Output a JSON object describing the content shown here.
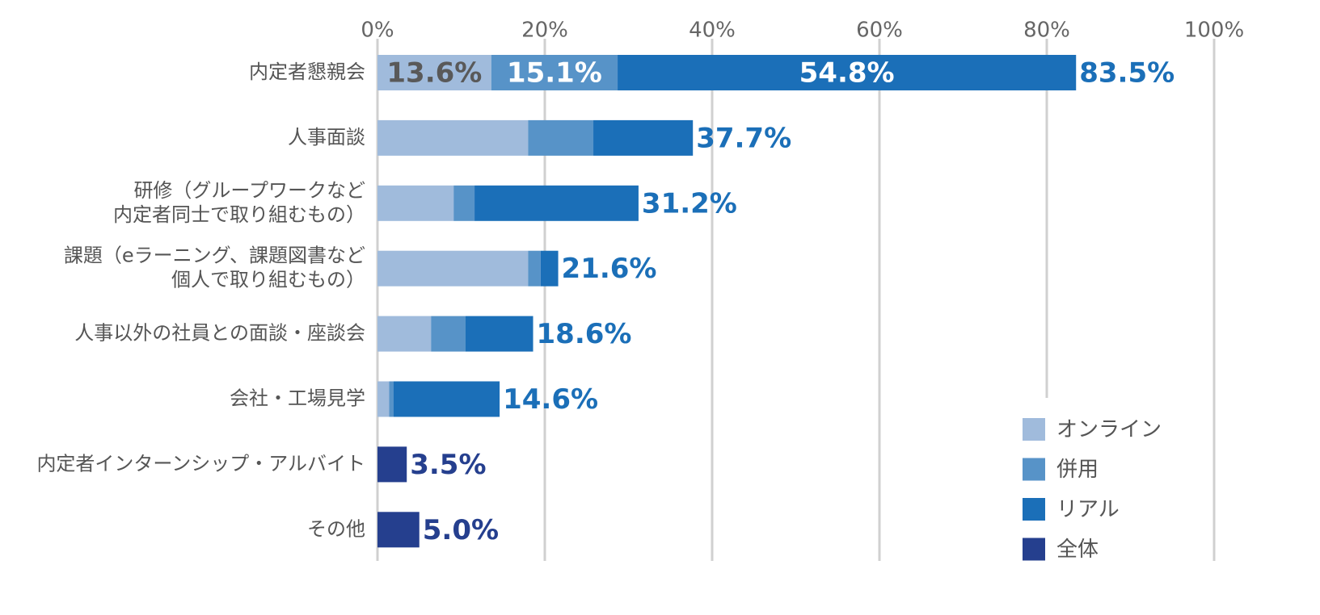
{
  "chart_data": {
    "type": "stacked-bar-horizontal",
    "categories": [
      "内定者懇親会",
      "人事面談",
      "研修（グループワークなど\n内定者同士で取り組むもの）",
      "課題（eラーニング、課題図書など\n個人で取り組むもの）",
      "人事以外の社員との面談・座談会",
      "会社・工場見学",
      "内定者インターンシップ・アルバイト",
      "その他"
    ],
    "series": [
      {
        "name": "オンライン",
        "color": "#a0bbdc",
        "label_color": "#595959",
        "values": [
          13.6,
          18.0,
          9.1,
          18.0,
          6.4,
          1.4,
          null,
          null
        ],
        "value_labels": [
          "13.6%",
          null,
          null,
          null,
          null,
          null,
          null,
          null
        ]
      },
      {
        "name": "併用",
        "color": "#5793c8",
        "label_color": "#ffffff",
        "values": [
          15.1,
          7.8,
          2.5,
          1.5,
          4.1,
          0.5,
          null,
          null
        ],
        "value_labels": [
          "15.1%",
          null,
          null,
          null,
          null,
          null,
          null,
          null
        ]
      },
      {
        "name": "リアル",
        "color": "#1b6fb8",
        "label_color": "#ffffff",
        "values": [
          54.8,
          11.9,
          19.6,
          2.1,
          8.1,
          12.7,
          null,
          null
        ],
        "value_labels": [
          "54.8%",
          null,
          null,
          null,
          null,
          null,
          null,
          null
        ]
      },
      {
        "name": "全体",
        "color": "#253f8e",
        "values": [
          null,
          null,
          null,
          null,
          null,
          null,
          3.5,
          5.0
        ]
      }
    ],
    "totals": {
      "values": [
        83.5,
        37.7,
        31.2,
        21.6,
        18.6,
        14.6,
        3.5,
        5.0
      ],
      "value_labels": [
        "83.5%",
        "37.7%",
        "31.2%",
        "21.6%",
        "18.6%",
        "14.6%",
        "3.5%",
        "5.0%"
      ],
      "colors": [
        "#1b6fb8",
        "#1b6fb8",
        "#1b6fb8",
        "#1b6fb8",
        "#1b6fb8",
        "#1b6fb8",
        "#253f8e",
        "#253f8e"
      ]
    },
    "xlim": [
      0,
      100
    ],
    "xticks": [
      {
        "value": 0,
        "label": "0%"
      },
      {
        "value": 20,
        "label": "20%"
      },
      {
        "value": 40,
        "label": "40%"
      },
      {
        "value": 60,
        "label": "60%"
      },
      {
        "value": 80,
        "label": "80%"
      },
      {
        "value": 100,
        "label": "100%"
      }
    ],
    "grid": true,
    "legend": "lower right"
  }
}
